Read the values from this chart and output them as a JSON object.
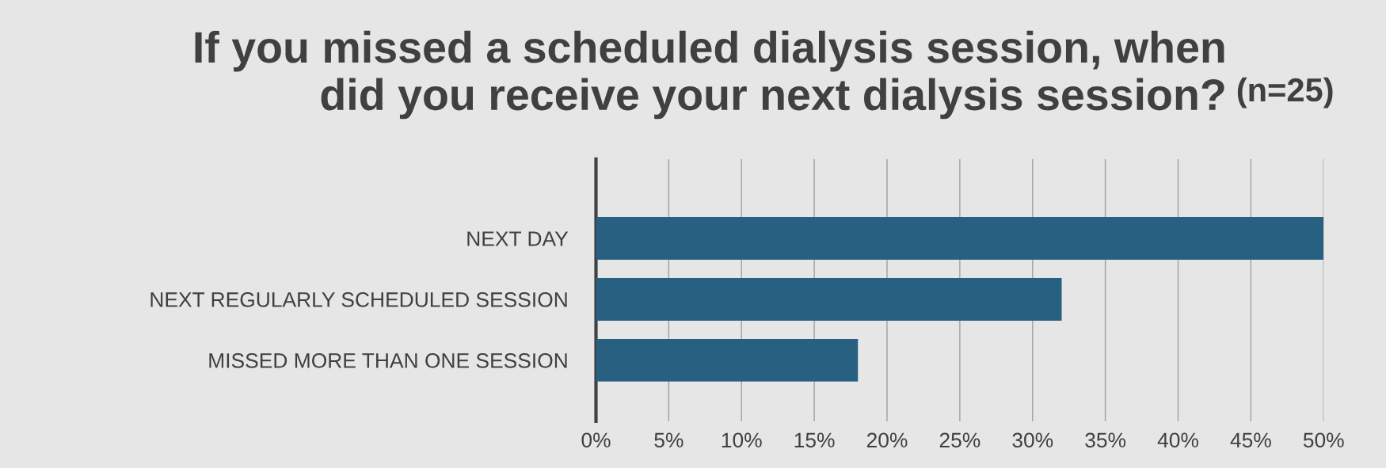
{
  "chart_data": {
    "type": "bar",
    "orientation": "horizontal",
    "title": "If you missed a scheduled dialysis session, when\ndid you receive your next dialysis session?",
    "subtitle": "(n=25)",
    "categories": [
      "NEXT DAY",
      "NEXT REGULARLY SCHEDULED SESSION",
      "MISSED MORE THAN ONE SESSION"
    ],
    "values": [
      50,
      32,
      18
    ],
    "color": "#276080",
    "xlim": [
      0,
      50
    ],
    "xticks": [
      {
        "value": 0,
        "label": "0%"
      },
      {
        "value": 5,
        "label": "5%"
      },
      {
        "value": 10,
        "label": "10%"
      },
      {
        "value": 15,
        "label": "15%"
      },
      {
        "value": 20,
        "label": "20%"
      },
      {
        "value": 25,
        "label": "25%"
      },
      {
        "value": 30,
        "label": "30%"
      },
      {
        "value": 35,
        "label": "35%"
      },
      {
        "value": 40,
        "label": "40%"
      },
      {
        "value": 45,
        "label": "45%"
      },
      {
        "value": 50,
        "label": "50%"
      }
    ],
    "grid": "x"
  }
}
